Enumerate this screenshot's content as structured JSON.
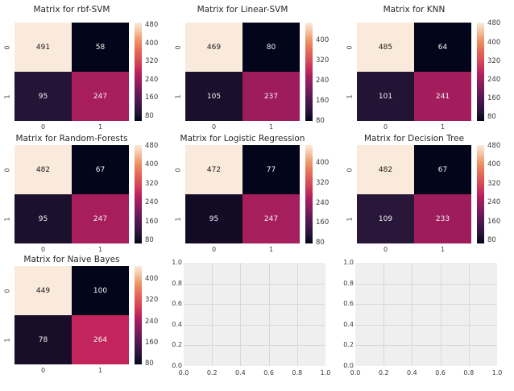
{
  "figure": {
    "background": "#ffffff"
  },
  "colormap": {
    "name": "rocket",
    "stops": [
      {
        "p": 0.0,
        "c": "#03051a"
      },
      {
        "p": 0.08,
        "c": "#221333"
      },
      {
        "p": 0.18,
        "c": "#43164e"
      },
      {
        "p": 0.28,
        "c": "#661a57"
      },
      {
        "p": 0.38,
        "c": "#8e1d5e"
      },
      {
        "p": 0.46,
        "c": "#ad1e5e"
      },
      {
        "p": 0.52,
        "c": "#c42a5c"
      },
      {
        "p": 0.62,
        "c": "#d94d56"
      },
      {
        "p": 0.72,
        "c": "#e66c58"
      },
      {
        "p": 0.82,
        "c": "#ee9467"
      },
      {
        "p": 0.91,
        "c": "#f4c3a1"
      },
      {
        "p": 1.0,
        "c": "#faebdd"
      }
    ]
  },
  "chart_data": [
    {
      "type": "heatmap",
      "title": "Matrix for rbf-SVM",
      "x_labels": [
        "0",
        "1"
      ],
      "y_labels": [
        "0",
        "1"
      ],
      "values": [
        [
          491,
          58
        ],
        [
          95,
          247
        ]
      ],
      "vmin": 58,
      "vmax": 491,
      "colorbar_ticks": [
        80,
        160,
        240,
        320,
        400,
        480
      ],
      "cell_colors": [
        [
          "#faeadc",
          "#03051a"
        ],
        [
          "#241536",
          "#a81e5d"
        ]
      ]
    },
    {
      "type": "heatmap",
      "title": "Matrix for Linear-SVM",
      "x_labels": [
        "0",
        "1"
      ],
      "y_labels": [
        "0",
        "1"
      ],
      "values": [
        [
          469,
          80
        ],
        [
          105,
          237
        ]
      ],
      "vmin": 80,
      "vmax": 469,
      "colorbar_ticks": [
        80,
        160,
        240,
        320,
        400
      ],
      "cell_colors": [
        [
          "#faeadc",
          "#03051a"
        ],
        [
          "#1a0f2c",
          "#9e1c5b"
        ]
      ]
    },
    {
      "type": "heatmap",
      "title": "Matrix for KNN",
      "x_labels": [
        "0",
        "1"
      ],
      "y_labels": [
        "0",
        "1"
      ],
      "values": [
        [
          485,
          64
        ],
        [
          101,
          241
        ]
      ],
      "vmin": 64,
      "vmax": 485,
      "colorbar_ticks": [
        80,
        160,
        240,
        320,
        400,
        480
      ],
      "cell_colors": [
        [
          "#faeadc",
          "#03051a"
        ],
        [
          "#231435",
          "#a31d5c"
        ]
      ]
    },
    {
      "type": "heatmap",
      "title": "Matrix for Random-Forests",
      "x_labels": [
        "0",
        "1"
      ],
      "y_labels": [
        "0",
        "1"
      ],
      "values": [
        [
          482,
          67
        ],
        [
          95,
          247
        ]
      ],
      "vmin": 67,
      "vmax": 482,
      "colorbar_ticks": [
        80,
        160,
        240,
        320,
        400,
        480
      ],
      "cell_colors": [
        [
          "#faeadc",
          "#03051a"
        ],
        [
          "#1b102d",
          "#a81e5d"
        ]
      ]
    },
    {
      "type": "heatmap",
      "title": "Matrix for Logistic Regression",
      "x_labels": [
        "0",
        "1"
      ],
      "y_labels": [
        "0",
        "1"
      ],
      "values": [
        [
          472,
          77
        ],
        [
          95,
          247
        ]
      ],
      "vmin": 77,
      "vmax": 472,
      "colorbar_ticks": [
        80,
        160,
        240,
        320,
        400
      ],
      "cell_colors": [
        [
          "#faeadc",
          "#03051a"
        ],
        [
          "#130b26",
          "#a71e5d"
        ]
      ]
    },
    {
      "type": "heatmap",
      "title": "Matrix for Decision Tree",
      "x_labels": [
        "0",
        "1"
      ],
      "y_labels": [
        "0",
        "1"
      ],
      "values": [
        [
          482,
          67
        ],
        [
          109,
          233
        ]
      ],
      "vmin": 67,
      "vmax": 482,
      "colorbar_ticks": [
        80,
        160,
        240,
        320,
        400,
        480
      ],
      "cell_colors": [
        [
          "#faeadc",
          "#03051a"
        ],
        [
          "#281739",
          "#9e1c5b"
        ]
      ]
    },
    {
      "type": "heatmap",
      "title": "Matrix for Naive Bayes",
      "x_labels": [
        "0",
        "1"
      ],
      "y_labels": [
        "0",
        "1"
      ],
      "values": [
        [
          449,
          100
        ],
        [
          78,
          264
        ]
      ],
      "vmin": 78,
      "vmax": 449,
      "colorbar_ticks": [
        80,
        160,
        240,
        320,
        400
      ],
      "cell_colors": [
        [
          "#faeadc",
          "#03051a"
        ],
        [
          "#180e2a",
          "#c2245b"
        ]
      ]
    },
    {
      "type": "empty_axes",
      "x_ticks": [
        "0.0",
        "0.2",
        "0.4",
        "0.6",
        "0.8",
        "1.0"
      ],
      "y_ticks": [
        "0.0",
        "0.2",
        "0.4",
        "0.6",
        "0.8",
        "1.0"
      ],
      "background": "#efefef",
      "grid_color": "#d9d9d9"
    },
    {
      "type": "empty_axes",
      "x_ticks": [
        "0.0",
        "0.2",
        "0.4",
        "0.6",
        "0.8",
        "1.0"
      ],
      "y_ticks": [
        "0.0",
        "0.2",
        "0.4",
        "0.6",
        "0.8",
        "1.0"
      ],
      "background": "#efefef",
      "grid_color": "#d9d9d9"
    }
  ]
}
